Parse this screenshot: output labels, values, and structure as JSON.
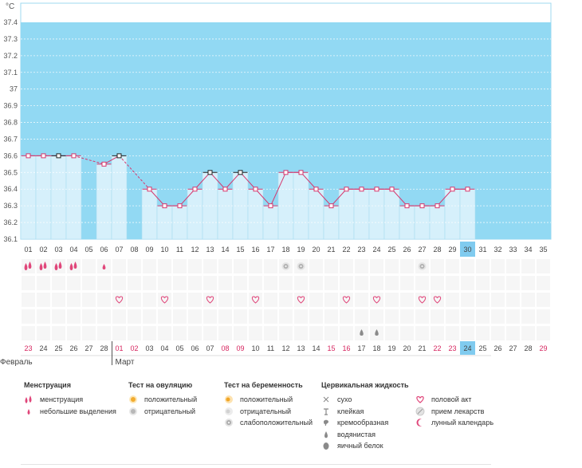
{
  "unit_label": "°C",
  "chart_data": {
    "type": "line",
    "ylim": [
      36.1,
      37.4
    ],
    "yticks": [
      "36.1",
      "36.2",
      "36.3",
      "36.4",
      "36.5",
      "36.6",
      "36.7",
      "36.8",
      "36.9",
      "37",
      "37.1",
      "37.2",
      "37.3",
      "37.4"
    ],
    "cycle_days": [
      "01",
      "02",
      "03",
      "04",
      "05",
      "06",
      "07",
      "08",
      "09",
      "10",
      "11",
      "12",
      "13",
      "14",
      "15",
      "16",
      "17",
      "18",
      "19",
      "20",
      "21",
      "22",
      "23",
      "24",
      "25",
      "26",
      "27",
      "28",
      "29",
      "30",
      "31",
      "32",
      "33",
      "34",
      "35"
    ],
    "current_day": "30",
    "temperatures": [
      36.6,
      36.6,
      36.6,
      36.6,
      null,
      36.55,
      36.6,
      null,
      36.4,
      36.3,
      36.3,
      36.4,
      36.5,
      36.4,
      36.5,
      36.4,
      36.3,
      36.5,
      36.5,
      36.4,
      36.3,
      36.4,
      36.4,
      36.4,
      36.4,
      36.3,
      36.3,
      36.3,
      36.4,
      36.4,
      null,
      null,
      null,
      null,
      null
    ],
    "highlighted_points": [
      3,
      7,
      13,
      15
    ],
    "dashed_segments": [
      [
        4,
        6
      ],
      [
        7,
        9
      ]
    ],
    "dates": [
      "23",
      "24",
      "25",
      "26",
      "27",
      "28",
      "01",
      "02",
      "03",
      "04",
      "05",
      "06",
      "07",
      "08",
      "09",
      "10",
      "11",
      "12",
      "13",
      "14",
      "15",
      "16",
      "17",
      "18",
      "19",
      "20",
      "21",
      "22",
      "23",
      "24",
      "25",
      "26",
      "27",
      "28",
      "29"
    ],
    "weekend_days": [
      1,
      7,
      8,
      14,
      15,
      21,
      22,
      28,
      29,
      35
    ],
    "current_date": "24",
    "month_labels": [
      {
        "label": "Февраль",
        "start_day": 1
      },
      {
        "label": "Март",
        "start_day": 7
      }
    ],
    "markers": {
      "menstruation": [
        1,
        2,
        3,
        4
      ],
      "light_spotting": [
        6
      ],
      "pregnancy_test_negative": [
        18,
        19,
        27
      ],
      "intercourse": [
        7,
        10,
        13,
        16,
        19,
        22,
        24,
        27,
        28
      ],
      "cervical_fluid_watery": [
        23,
        24
      ]
    }
  },
  "colors": {
    "plot_background": "#92d9f3",
    "bar_fill": "#d6f0fb",
    "line": "#d6386e",
    "weekend_text": "#d6255f",
    "current_day_bg": "#80cbef"
  },
  "legend": {
    "menstruation": {
      "title": "Менструация",
      "items": [
        {
          "icon": "blood-drops-icon",
          "label": "менструация"
        },
        {
          "icon": "small-drop-icon",
          "label": "небольшие выделения"
        }
      ]
    },
    "ovulation_test": {
      "title": "Тест на овуляцию",
      "items": [
        {
          "icon": "positive-test-icon",
          "label": "положительный"
        },
        {
          "icon": "negative-test-icon",
          "label": "отрицательный"
        }
      ]
    },
    "pregnancy_test": {
      "title": "Тест на беременность",
      "items": [
        {
          "icon": "pregnancy-positive-icon",
          "label": "положительный"
        },
        {
          "icon": "pregnancy-negative-icon",
          "label": "отрицательный"
        },
        {
          "icon": "pregnancy-weak-icon",
          "label": "слабоположительный"
        }
      ]
    },
    "cervical_fluid": {
      "title": "Цервикальная жидкость",
      "items": [
        {
          "icon": "dry-icon",
          "label": "сухо"
        },
        {
          "icon": "sticky-icon",
          "label": "клейкая"
        },
        {
          "icon": "creamy-icon",
          "label": "кремообразная"
        },
        {
          "icon": "watery-icon",
          "label": "водянистая"
        },
        {
          "icon": "egg-white-icon",
          "label": "яичный белок"
        }
      ]
    },
    "other": {
      "items": [
        {
          "icon": "heart-icon",
          "label": "половой акт"
        },
        {
          "icon": "pill-icon",
          "label": "прием лекарств"
        },
        {
          "icon": "moon-icon",
          "label": "лунный календарь"
        }
      ]
    }
  }
}
